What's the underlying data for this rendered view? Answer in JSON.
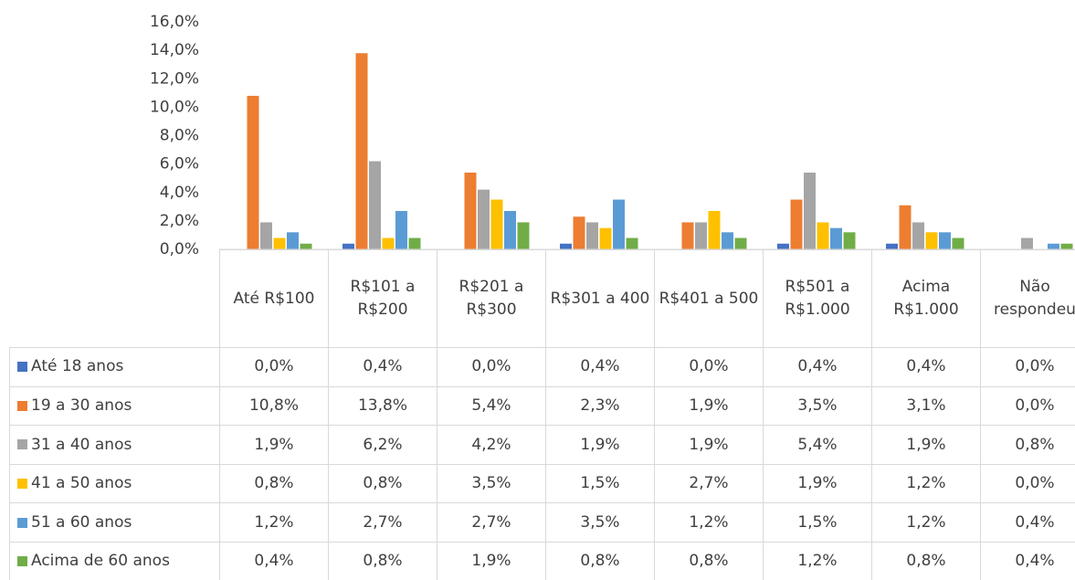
{
  "chart_data": {
    "type": "bar",
    "categories": [
      "Até R$100",
      "R$101 a R$200",
      "R$201 a R$300",
      "R$301 a 400",
      "R$401 a 500",
      "R$501 a R$1.000",
      "Acima R$1.000",
      "Não respondeu"
    ],
    "series": [
      {
        "name": "Até 18 anos",
        "color": "#4472c4",
        "values": [
          0,
          0.4,
          0,
          0.4,
          0,
          0.4,
          0.4,
          0
        ],
        "value_labels": [
          "0,0%",
          "0,4%",
          "0,0%",
          "0,4%",
          "0,0%",
          "0,4%",
          "0,4%",
          "0,0%"
        ]
      },
      {
        "name": "19 a 30 anos",
        "color": "#ed7d31",
        "values": [
          10.8,
          13.8,
          5.4,
          2.3,
          1.9,
          3.5,
          3.1,
          0
        ],
        "value_labels": [
          "10,8%",
          "13,8%",
          "5,4%",
          "2,3%",
          "1,9%",
          "3,5%",
          "3,1%",
          "0,0%"
        ]
      },
      {
        "name": "31 a 40 anos",
        "color": "#a5a5a5",
        "values": [
          1.9,
          6.2,
          4.2,
          1.9,
          1.9,
          5.4,
          1.9,
          0.8
        ],
        "value_labels": [
          "1,9%",
          "6,2%",
          "4,2%",
          "1,9%",
          "1,9%",
          "5,4%",
          "1,9%",
          "0,8%"
        ]
      },
      {
        "name": "41 a 50 anos",
        "color": "#ffc000",
        "values": [
          0.8,
          0.8,
          3.5,
          1.5,
          2.7,
          1.9,
          1.2,
          0
        ],
        "value_labels": [
          "0,8%",
          "0,8%",
          "3,5%",
          "1,5%",
          "2,7%",
          "1,9%",
          "1,2%",
          "0,0%"
        ]
      },
      {
        "name": "51 a 60 anos",
        "color": "#5b9bd5",
        "values": [
          1.2,
          2.7,
          2.7,
          3.5,
          1.2,
          1.5,
          1.2,
          0.4
        ],
        "value_labels": [
          "1,2%",
          "2,7%",
          "2,7%",
          "3,5%",
          "1,2%",
          "1,5%",
          "1,2%",
          "0,4%"
        ]
      },
      {
        "name": "Acima de 60 anos",
        "color": "#70ad47",
        "values": [
          0.4,
          0.8,
          1.9,
          0.8,
          0.8,
          1.2,
          0.8,
          0.4
        ],
        "value_labels": [
          "0,4%",
          "0,8%",
          "1,9%",
          "0,8%",
          "0,8%",
          "1,2%",
          "0,8%",
          "0,4%"
        ]
      }
    ],
    "ylim": [
      0,
      16
    ],
    "yticks": [
      {
        "value": 0,
        "label": "0,0%"
      },
      {
        "value": 2,
        "label": "2,0%"
      },
      {
        "value": 4,
        "label": "4,0%"
      },
      {
        "value": 6,
        "label": "6,0%"
      },
      {
        "value": 8,
        "label": "8,0%"
      },
      {
        "value": 10,
        "label": "10,0%"
      },
      {
        "value": 12,
        "label": "12,0%"
      },
      {
        "value": 14,
        "label": "14,0%"
      },
      {
        "value": 16,
        "label": "16,0%"
      }
    ]
  }
}
